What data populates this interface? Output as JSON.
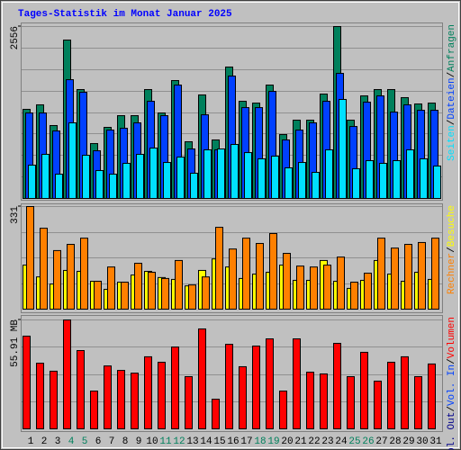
{
  "chart_data": [
    {
      "type": "bar",
      "title": "Tages-Statistik im Monat Januar 2025",
      "title_color": "#0000ff",
      "ylim": [
        0,
        2556
      ],
      "yticks": [
        2556
      ],
      "legend_separator": "/",
      "series": [
        {
          "name": "Anfragen",
          "color": "#00805c",
          "values": [
            1325,
            1392,
            1084,
            2355,
            1619,
            816,
            1057,
            1231,
            1231,
            1619,
            1271,
            1753,
            843,
            1539,
            870,
            1954,
            1445,
            1418,
            1686,
            950,
            1164,
            1164,
            1552,
            2556,
            1164,
            1525,
            1619,
            1619,
            1499,
            1405,
            1418
          ]
        },
        {
          "name": "Dateien",
          "color": "#0040ff",
          "values": [
            1271,
            1271,
            1004,
            1766,
            1579,
            709,
            1017,
            1044,
            1124,
            1445,
            1231,
            1686,
            736,
            1244,
            723,
            1820,
            1351,
            1351,
            1592,
            870,
            1017,
            1124,
            1445,
            1860,
            1070,
            1432,
            1525,
            1284,
            1392,
            1311,
            1311
          ]
        },
        {
          "name": "Seiten",
          "color": "#00e0ff",
          "values": [
            495,
            656,
            361,
            1124,
            642,
            415,
            361,
            522,
            656,
            749,
            535,
            615,
            375,
            723,
            736,
            803,
            682,
            589,
            629,
            455,
            535,
            388,
            723,
            1472,
            442,
            562,
            522,
            562,
            723,
            589,
            482
          ]
        }
      ]
    },
    {
      "type": "bar",
      "ylim": [
        0,
        331
      ],
      "yticks": [
        331
      ],
      "legend_separator": "/",
      "series": [
        {
          "name": "Besuche",
          "color": "#ffff00",
          "values": [
            142,
            104,
            81,
            125,
            122,
            90,
            64,
            87,
            110,
            122,
            102,
            96,
            75,
            125,
            162,
            136,
            99,
            113,
            119,
            142,
            93,
            93,
            157,
            90,
            67,
            93,
            157,
            113,
            90,
            119,
            96
          ]
        },
        {
          "name": "Rechner",
          "color": "#ff8000",
          "values": [
            331,
            261,
            189,
            209,
            229,
            90,
            136,
            87,
            148,
            119,
            99,
            157,
            78,
            104,
            264,
            194,
            229,
            212,
            244,
            180,
            139,
            136,
            142,
            168,
            87,
            116,
            229,
            197,
            209,
            215,
            229
          ]
        }
      ]
    },
    {
      "type": "bar",
      "ylim": [
        0,
        55.91
      ],
      "yticks": [
        {
          "value": 55.91,
          "label": "55.91 MB"
        }
      ],
      "legend_separator": "/",
      "legend_extra": [
        {
          "name": "Vol. In",
          "color": "#0040ff"
        },
        {
          "name": "Vol. Out",
          "color": "#00008b"
        }
      ],
      "categories": [
        "1",
        "2",
        "3",
        "4",
        "5",
        "6",
        "7",
        "8",
        "9",
        "10",
        "11",
        "12",
        "13",
        "14",
        "15",
        "16",
        "17",
        "18",
        "19",
        "20",
        "21",
        "22",
        "23",
        "24",
        "25",
        "26",
        "27",
        "28",
        "29",
        "30",
        "31"
      ],
      "category_colors": [
        "#000000",
        "#000000",
        "#000000",
        "#00805c",
        "#00805c",
        "#000000",
        "#000000",
        "#000000",
        "#000000",
        "#000000",
        "#00805c",
        "#00805c",
        "#000000",
        "#000000",
        "#000000",
        "#000000",
        "#000000",
        "#00805c",
        "#00805c",
        "#000000",
        "#000000",
        "#000000",
        "#000000",
        "#000000",
        "#00805c",
        "#00805c",
        "#000000",
        "#000000",
        "#000000",
        "#000000",
        "#000000"
      ],
      "series": [
        {
          "name": "Volumen",
          "color": "#ff0000",
          "values": [
            47.6,
            33.7,
            29.6,
            55.91,
            40.2,
            19.4,
            32.3,
            30.0,
            28.6,
            37.0,
            34.2,
            42.0,
            26.8,
            51.3,
            15.2,
            43.4,
            31.9,
            42.5,
            46.2,
            19.4,
            46.2,
            29.1,
            28.2,
            43.9,
            26.8,
            39.3,
            24.5,
            34.2,
            37.0,
            26.8,
            33.3
          ]
        }
      ]
    }
  ]
}
